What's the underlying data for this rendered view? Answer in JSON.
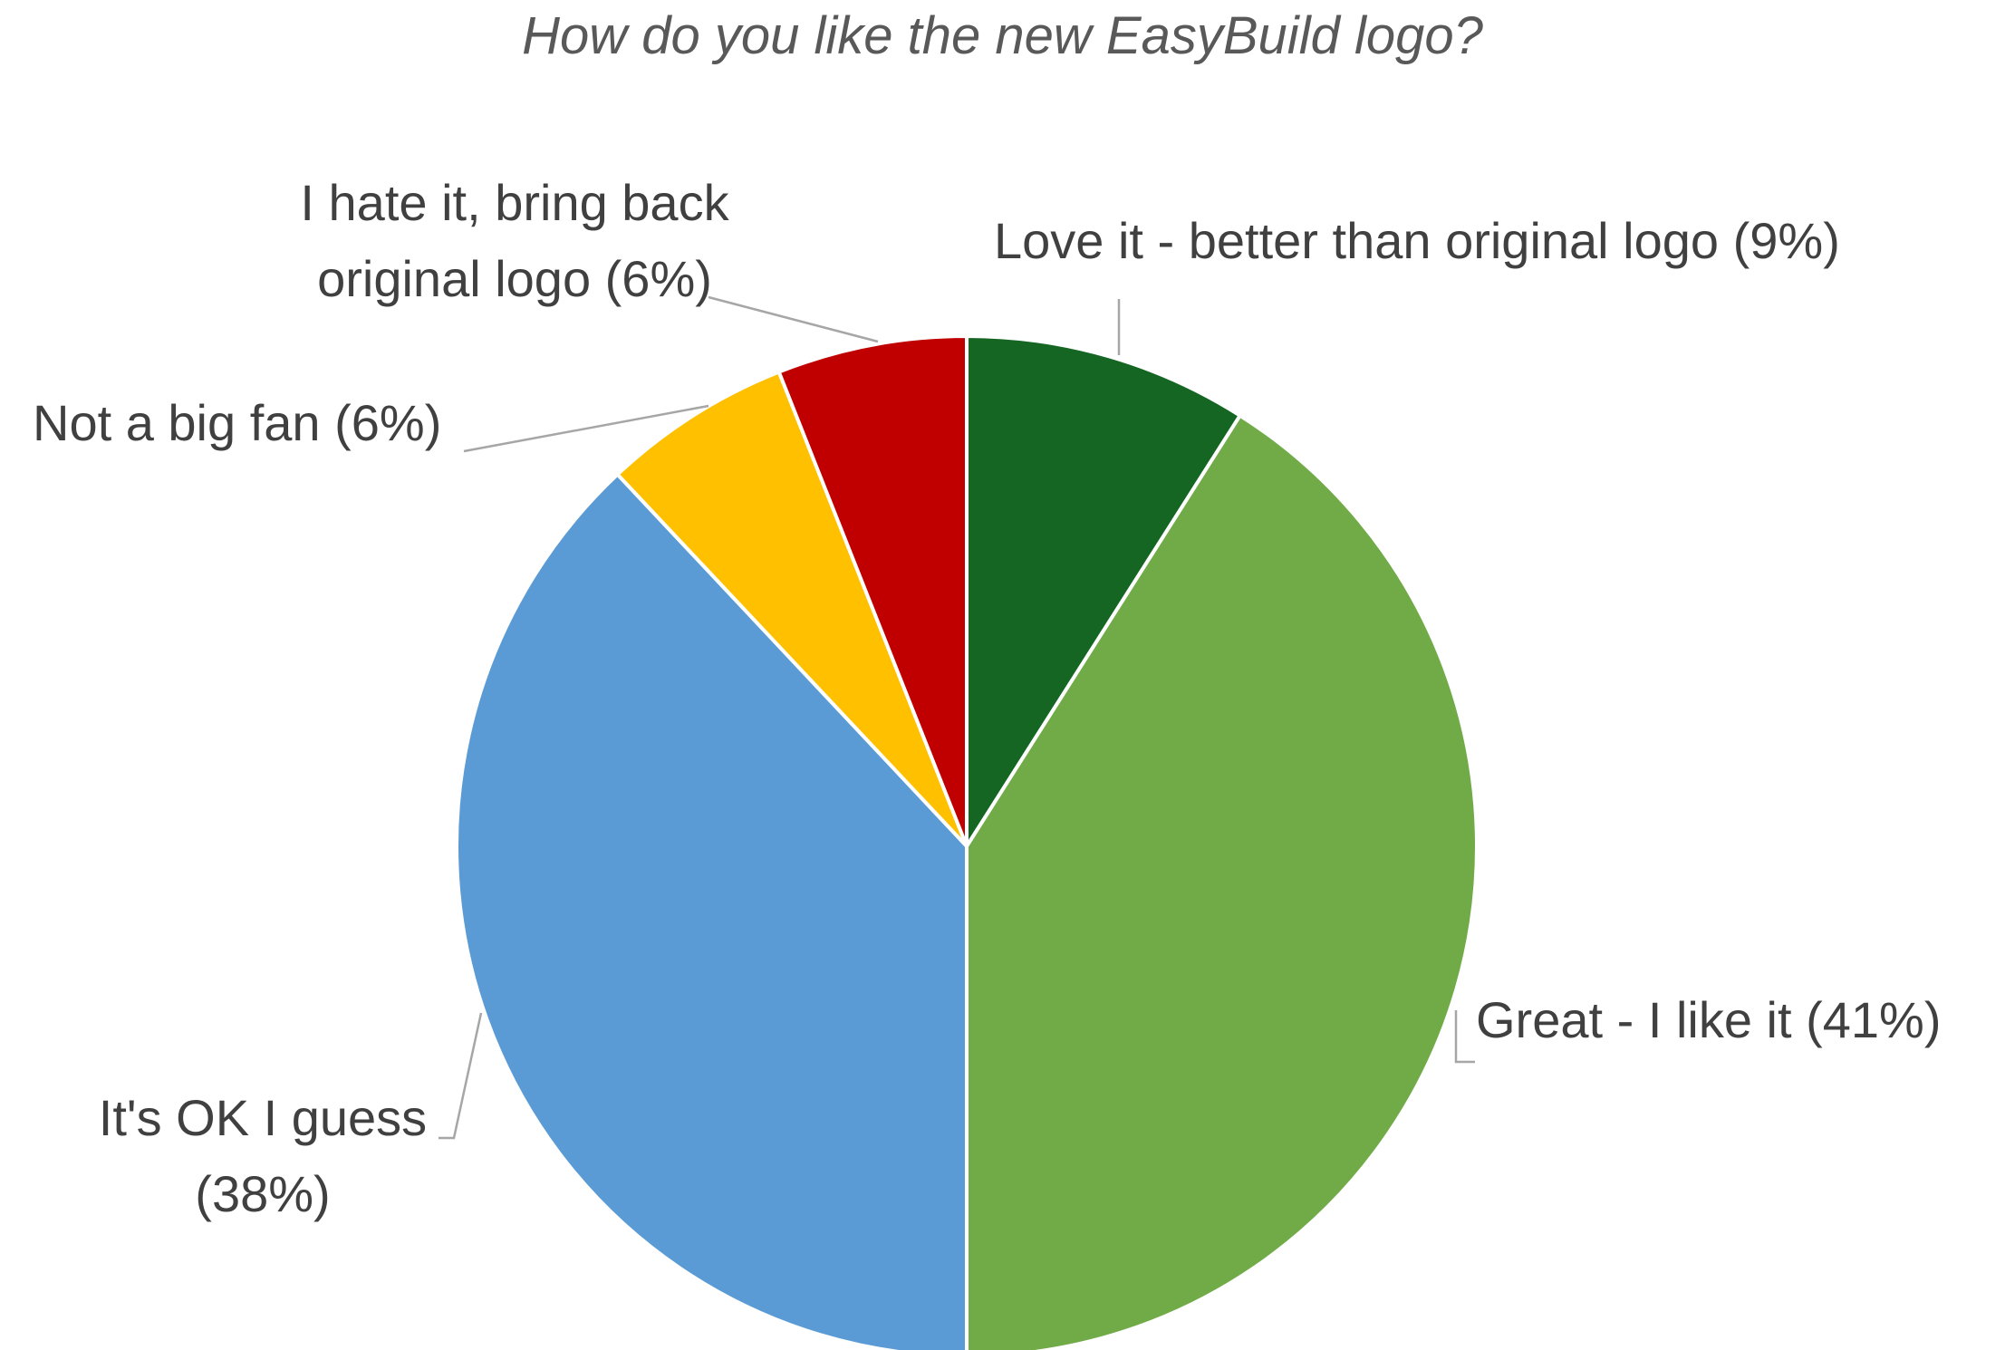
{
  "chart_data": {
    "type": "pie",
    "title": "How do you like the new EasyBuild logo?",
    "slices": [
      {
        "label": "Love it - better than original logo (9%)",
        "value": 9,
        "color": "#156523"
      },
      {
        "label": "Great - I like it (41%)",
        "value": 41,
        "color": "#71AB48"
      },
      {
        "label": "It's OK I guess (38%)",
        "value": 38,
        "color": "#5B9BD5"
      },
      {
        "label": "Not a big fan (6%)",
        "value": 6,
        "color": "#FFC000"
      },
      {
        "label": "I hate it, bring back original logo (6%)",
        "value": 6,
        "color": "#C00000"
      }
    ],
    "legend": "none",
    "data_labels": "outside with leader lines"
  }
}
